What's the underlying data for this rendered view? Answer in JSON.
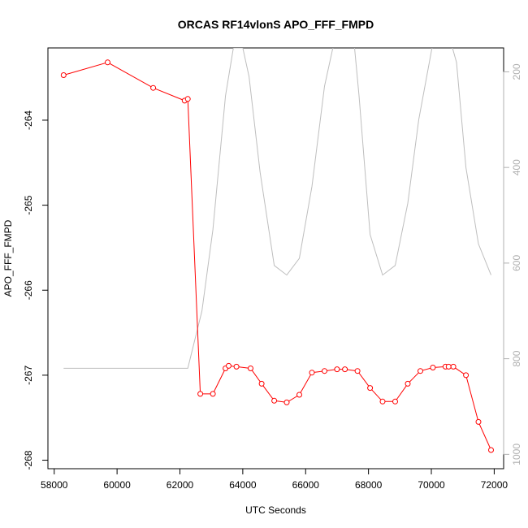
{
  "chart_data": {
    "type": "line",
    "title": "ORCAS RF14vlonS APO_FFF_FMPD",
    "xlabel": "UTC Seconds",
    "ylabel": "APO_FFF_FMPD",
    "xlim": [
      57800,
      72300
    ],
    "ylim": [
      -268.1,
      -263.15
    ],
    "y2lim": [
      1030,
      150
    ],
    "x_ticks": [
      58000,
      60000,
      62000,
      64000,
      66000,
      68000,
      70000,
      72000
    ],
    "y_ticks": [
      -268,
      -267,
      -266,
      -265,
      -264
    ],
    "y2_ticks": [
      200,
      400,
      600,
      800,
      1000
    ],
    "grid": false,
    "colors": {
      "series": "#ff0000",
      "secondary": "#bebebe"
    },
    "series": [
      {
        "axis": "left",
        "style": "line+circle",
        "x": [
          58300,
          59700,
          61150,
          62150,
          62250,
          62650,
          63050,
          63450,
          63550,
          63800,
          64250,
          64600,
          65000,
          65400,
          65800,
          66200,
          66600,
          67000,
          67250,
          67650,
          68050,
          68450,
          68850,
          69250,
          69650,
          70050,
          70450,
          70550,
          70700,
          71100,
          71500,
          71900
        ],
        "y": [
          -263.47,
          -263.32,
          -263.62,
          -263.77,
          -263.75,
          -267.22,
          -267.22,
          -266.92,
          -266.89,
          -266.9,
          -266.92,
          -267.1,
          -267.3,
          -267.32,
          -267.23,
          -266.97,
          -266.95,
          -266.93,
          -266.93,
          -266.95,
          -267.15,
          -267.31,
          -267.31,
          -267.1,
          -266.95,
          -266.91,
          -266.9,
          -266.9,
          -266.9,
          -267.0,
          -267.55,
          -267.88
        ]
      },
      {
        "axis": "right",
        "style": "line",
        "x": [
          58300,
          62250,
          62700,
          63050,
          63450,
          63700,
          64000,
          64200,
          64550,
          65000,
          65400,
          65800,
          66200,
          66600,
          67000,
          67500,
          67700,
          68050,
          68450,
          68850,
          69250,
          69600,
          70050,
          70500,
          70800,
          71100,
          71500,
          71900
        ],
        "y": [
          820,
          820,
          700,
          530,
          250,
          150,
          150,
          210,
          410,
          605,
          625,
          590,
          440,
          230,
          110,
          110,
          250,
          540,
          625,
          605,
          475,
          300,
          140,
          110,
          180,
          400,
          560,
          625
        ]
      }
    ]
  }
}
